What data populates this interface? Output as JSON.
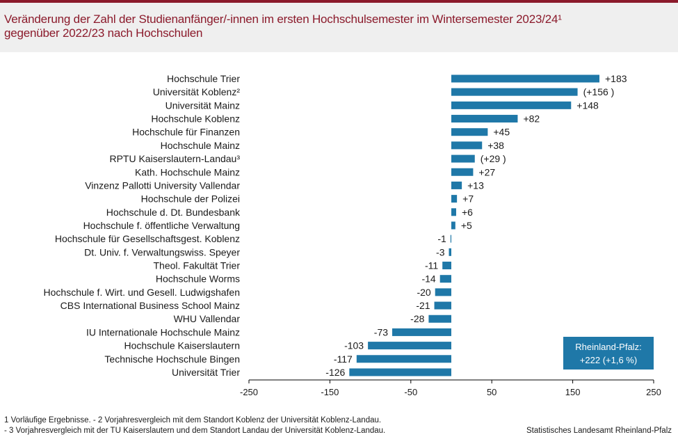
{
  "header": {
    "title_line1": "Veränderung der Zahl der Studienanfänger/-innen im ersten Hochschulsemester im Wintersemester 2023/24¹",
    "title_line2": "gegenüber 2022/23 nach Hochschulen"
  },
  "chart_data": {
    "type": "bar",
    "orientation": "horizontal",
    "categories": [
      "Hochschule Trier",
      "Universität Koblenz²",
      "Universität Mainz",
      "Hochschule Koblenz",
      "Hochschule für Finanzen",
      "Hochschule Mainz",
      "RPTU Kaiserslautern-Landau³",
      "Kath. Hochschule Mainz",
      "Vinzenz Pallotti University Vallendar",
      "Hochschule der Polizei",
      "Hochschule d. Dt. Bundesbank",
      "Hochschule f. öffentliche Verwaltung",
      "Hochschule für Gesellschaftsgest. Koblenz",
      "Dt. Univ. f. Verwaltungswiss. Speyer",
      "Theol. Fakultät Trier",
      "Hochschule Worms",
      "Hochschule f. Wirt. und Gesell. Ludwigshafen",
      "CBS International Business School Mainz",
      "WHU Vallendar",
      "IU Internationale Hochschule Mainz",
      "Hochschule Kaiserslautern",
      "Technische Hochschule Bingen",
      "Universität Trier"
    ],
    "values": [
      183,
      156,
      148,
      82,
      45,
      38,
      29,
      27,
      13,
      7,
      6,
      5,
      -1,
      -3,
      -11,
      -14,
      -20,
      -21,
      -28,
      -73,
      -103,
      -117,
      -126
    ],
    "data_labels": [
      "+183",
      "(+156 )",
      "+148",
      "+82",
      "+45",
      "+38",
      "(+29 )",
      "+27",
      "+13",
      "+7",
      "+6",
      "+5",
      "-1",
      "-3",
      "-11",
      "-14",
      "-20",
      "-21",
      "-28",
      "-73",
      "-103",
      "-117",
      "-126"
    ],
    "xlim": [
      -250,
      250
    ],
    "x_ticks": [
      "-250",
      "-150",
      "-50",
      "50",
      "150",
      "250"
    ],
    "bar_color": "#1f78a8",
    "grid": false,
    "annotation_box": {
      "line1": "Rheinland-Pfalz:",
      "line2": "+222 (+1,6 %)",
      "color": "#1f78a8"
    }
  },
  "footnotes": {
    "line1": "1 Vorläufige  Ergebnisse.  - 2 Vorjahresvergleich  mit dem Standort  Koblenz der Universität  Koblenz-Landau.",
    "line2": "- 3 Vorjahresvergleich  mit der TU Kaiserslautern  und dem Standort Landau der Universität  Koblenz-Landau."
  },
  "source": "Statistisches Landesamt Rheinland-Pfalz"
}
